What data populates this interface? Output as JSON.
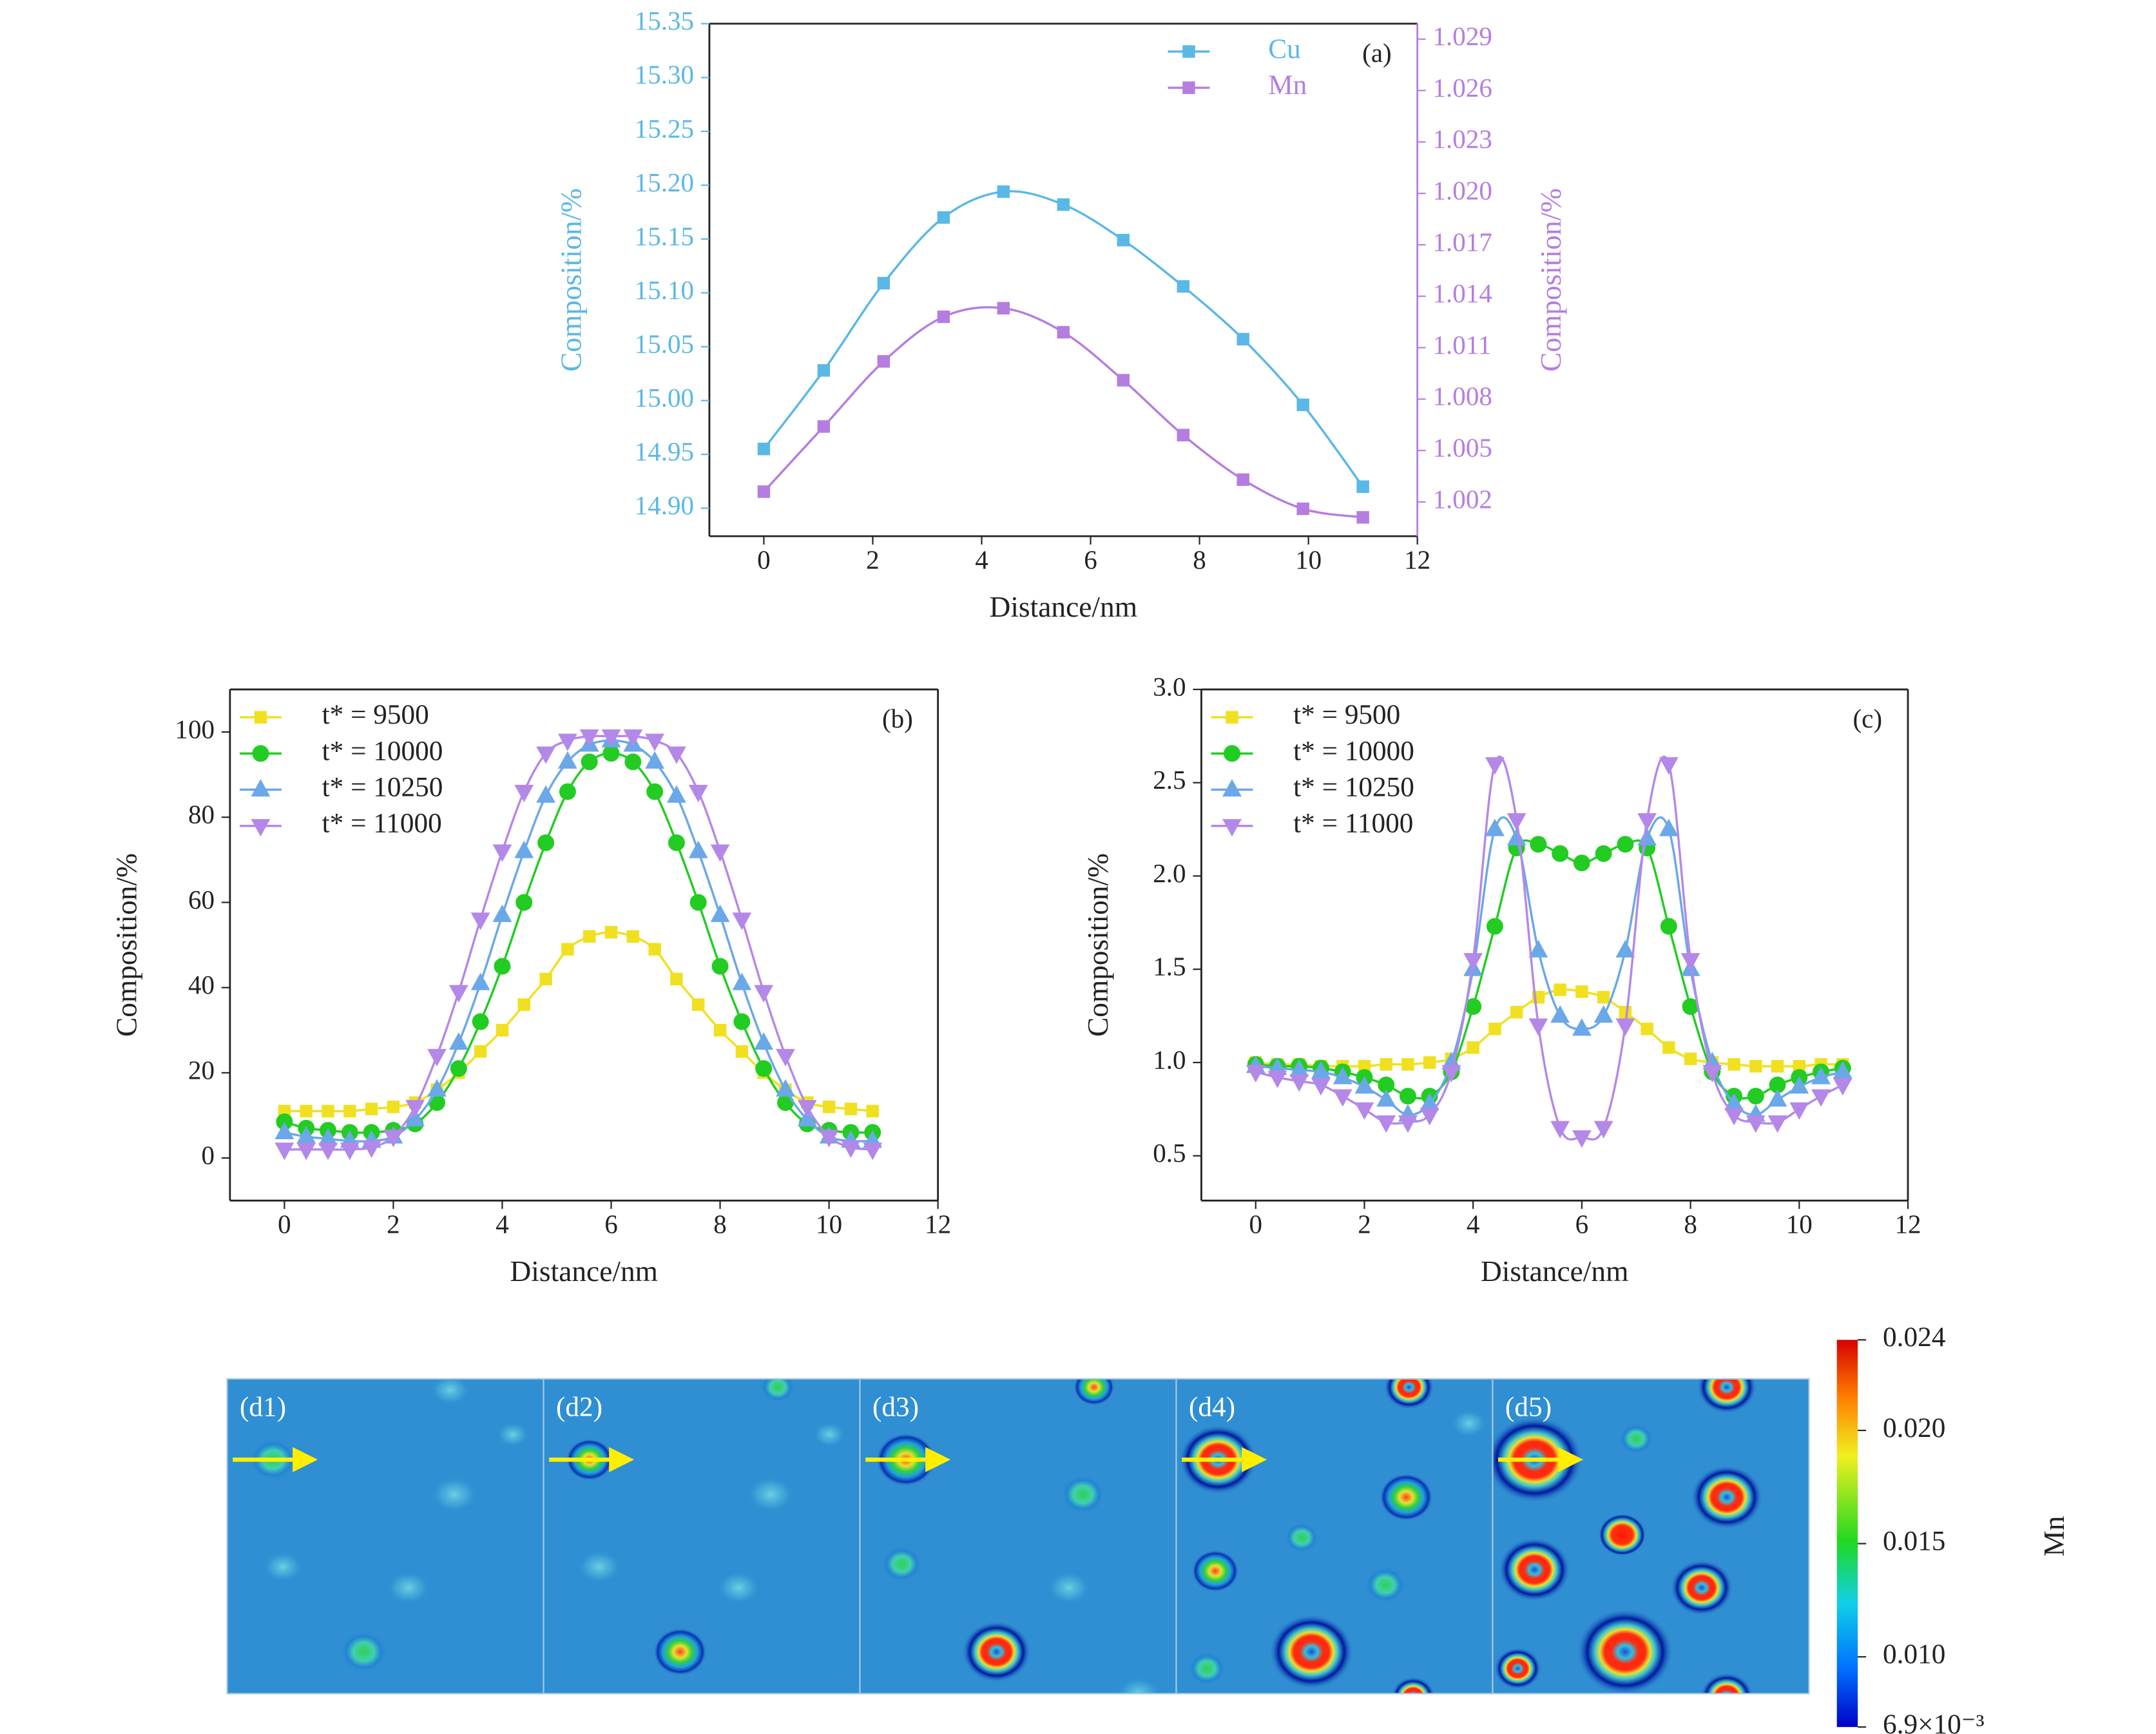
{
  "chart_data": [
    {
      "type": "line",
      "panel_label": "(a)",
      "xlabel": "Distance/nm",
      "ylabel": "Composition/%",
      "y2label": "Composition/%",
      "x": [
        0,
        1.1,
        2.2,
        3.3,
        4.4,
        5.5,
        6.6,
        7.7,
        8.8,
        9.9,
        11.0
      ],
      "xlim": [
        -1,
        12
      ],
      "xticks": [
        0,
        2,
        4,
        6,
        8,
        10,
        12
      ],
      "ylim": [
        14.874,
        15.35
      ],
      "yticks": [
        {
          "value": 14.9,
          "label": "14.90"
        },
        14.95,
        {
          "value": 15.0,
          "label": "15.00"
        },
        15.05,
        {
          "value": 15.1,
          "label": "15.10"
        },
        15.15,
        {
          "value": 15.2,
          "label": "15.20"
        },
        15.25,
        {
          "value": 15.3,
          "label": "15.30"
        },
        15.35
      ],
      "y2lim": [
        1.0,
        1.0299
      ],
      "y2ticks": [
        1.002,
        1.005,
        1.008,
        1.011,
        1.014,
        1.017,
        {
          "value": 1.02,
          "label": "1.020"
        },
        1.023,
        1.026,
        1.029
      ],
      "legend": "upper right",
      "series": [
        {
          "name": "Cu",
          "color": "#5ab8e6",
          "marker": "square",
          "values": [
            14.955,
            15.028,
            15.109,
            15.17,
            15.194,
            15.182,
            15.149,
            15.106,
            15.057,
            14.996,
            14.92
          ]
        },
        {
          "name": "Mn",
          "color": "#b57de0",
          "marker": "square",
          "axis": "y2",
          "values": [
            1.0026,
            1.0064,
            1.0102,
            1.0128,
            1.0133,
            1.0119,
            1.0091,
            1.0059,
            1.0033,
            1.0016,
            1.0011
          ]
        }
      ]
    },
    {
      "type": "line",
      "panel_label": "(b)",
      "xlabel": "Distance/nm",
      "ylabel": "Composition/%",
      "x": [
        0,
        0.4,
        0.8,
        1.2,
        1.6,
        2.0,
        2.4,
        2.8,
        3.2,
        3.6,
        4.0,
        4.4,
        4.8,
        5.2,
        5.6,
        6.0,
        6.4,
        6.8,
        7.2,
        7.6,
        8.0,
        8.4,
        8.8,
        9.2,
        9.6,
        10.0,
        10.4,
        10.8
      ],
      "xlim": [
        -1,
        12
      ],
      "xticks": [
        0,
        2,
        4,
        6,
        8,
        10,
        12
      ],
      "ylim": [
        -10,
        110
      ],
      "yticks": [
        0,
        20,
        40,
        60,
        80,
        100
      ],
      "legend": "upper left",
      "series": [
        {
          "name": "t* = 9500",
          "color": "#f0e020",
          "marker": "square",
          "values": [
            11,
            11,
            11,
            11,
            11.5,
            12,
            13,
            16,
            20,
            25,
            30,
            36,
            42,
            49,
            52,
            53,
            52,
            49,
            42,
            36,
            30,
            25,
            20,
            16,
            13,
            12,
            11.5,
            11
          ]
        },
        {
          "name": "t* = 10000",
          "color": "#22cc22",
          "marker": "circle",
          "values": [
            8.5,
            7,
            6.5,
            6,
            6,
            6.5,
            8,
            13,
            21,
            32,
            45,
            60,
            74,
            86,
            93,
            95,
            93,
            86,
            74,
            60,
            45,
            32,
            21,
            13,
            8,
            6.5,
            6,
            6
          ]
        },
        {
          "name": "t* = 10250",
          "color": "#6aa8e8",
          "marker": "triangle-up",
          "values": [
            6,
            5,
            4.5,
            4,
            4,
            5,
            9,
            16,
            27,
            41,
            57,
            72,
            85,
            93,
            97,
            98,
            97,
            93,
            85,
            72,
            57,
            41,
            27,
            16,
            9,
            5,
            4,
            4
          ]
        },
        {
          "name": "t* = 11000",
          "color": "#b488e8",
          "marker": "triangle-down",
          "values": [
            2,
            2,
            2,
            2,
            2.5,
            5,
            12,
            24,
            39,
            56,
            72,
            86,
            95,
            98,
            99,
            99,
            99,
            98,
            95,
            86,
            72,
            56,
            39,
            24,
            12,
            5,
            2.5,
            2
          ]
        }
      ]
    },
    {
      "type": "line",
      "panel_label": "(c)",
      "xlabel": "Distance/nm",
      "ylabel": "Composition/%",
      "x": [
        0,
        0.4,
        0.8,
        1.2,
        1.6,
        2.0,
        2.4,
        2.8,
        3.2,
        3.6,
        4.0,
        4.4,
        4.8,
        5.2,
        5.6,
        6.0,
        6.4,
        6.8,
        7.2,
        7.6,
        8.0,
        8.4,
        8.8,
        9.2,
        9.6,
        10.0,
        10.4,
        10.8
      ],
      "xlim": [
        -1,
        12
      ],
      "xticks": [
        0,
        2,
        4,
        6,
        8,
        10,
        12
      ],
      "ylim": [
        0.26,
        3.0
      ],
      "yticks": [
        0.5,
        {
          "value": 1.0,
          "label": "1.0"
        },
        1.5,
        {
          "value": 2.0,
          "label": "2.0"
        },
        2.5,
        {
          "value": 3.0,
          "label": "3.0"
        }
      ],
      "legend": "upper left",
      "series": [
        {
          "name": "t* = 9500",
          "color": "#f0e020",
          "marker": "square",
          "values": [
            1.0,
            0.99,
            0.99,
            0.98,
            0.98,
            0.98,
            0.99,
            0.99,
            1.0,
            1.02,
            1.08,
            1.18,
            1.27,
            1.35,
            1.39,
            1.38,
            1.35,
            1.27,
            1.18,
            1.08,
            1.02,
            1.0,
            0.99,
            0.98,
            0.98,
            0.98,
            0.99,
            0.99
          ]
        },
        {
          "name": "t* = 10000",
          "color": "#22cc22",
          "marker": "circle",
          "values": [
            0.99,
            0.98,
            0.98,
            0.97,
            0.95,
            0.92,
            0.88,
            0.82,
            0.82,
            0.95,
            1.3,
            1.73,
            2.15,
            2.17,
            2.12,
            2.07,
            2.12,
            2.17,
            2.15,
            1.73,
            1.3,
            0.95,
            0.82,
            0.82,
            0.88,
            0.92,
            0.95,
            0.97
          ]
        },
        {
          "name": "t* = 10250",
          "color": "#6aa8e8",
          "marker": "triangle-up",
          "values": [
            0.98,
            0.97,
            0.96,
            0.95,
            0.92,
            0.87,
            0.8,
            0.72,
            0.78,
            1.0,
            1.5,
            2.25,
            2.2,
            1.6,
            1.25,
            1.18,
            1.25,
            1.6,
            2.2,
            2.25,
            1.5,
            1.0,
            0.78,
            0.72,
            0.8,
            0.87,
            0.92,
            0.95
          ]
        },
        {
          "name": "t* = 11000",
          "color": "#b488e8",
          "marker": "triangle-down",
          "values": [
            0.95,
            0.92,
            0.9,
            0.88,
            0.82,
            0.75,
            0.68,
            0.68,
            0.72,
            0.95,
            1.55,
            2.6,
            2.3,
            1.2,
            0.65,
            0.6,
            0.65,
            1.2,
            2.3,
            2.6,
            1.55,
            0.95,
            0.72,
            0.68,
            0.68,
            0.75,
            0.82,
            0.88
          ]
        }
      ]
    },
    {
      "type": "colorbar",
      "panels": [
        "(d1)",
        "(d2)",
        "(d3)",
        "(d4)",
        "(d5)"
      ],
      "label": "Mn",
      "clim": [
        0.0069,
        0.024
      ],
      "ticks": [
        {
          "value": 0.0069,
          "label": "6.9×10⁻³"
        },
        {
          "value": 0.01,
          "label": "0.010"
        },
        0.015,
        {
          "value": 0.02,
          "label": "0.020"
        },
        0.024
      ]
    }
  ]
}
